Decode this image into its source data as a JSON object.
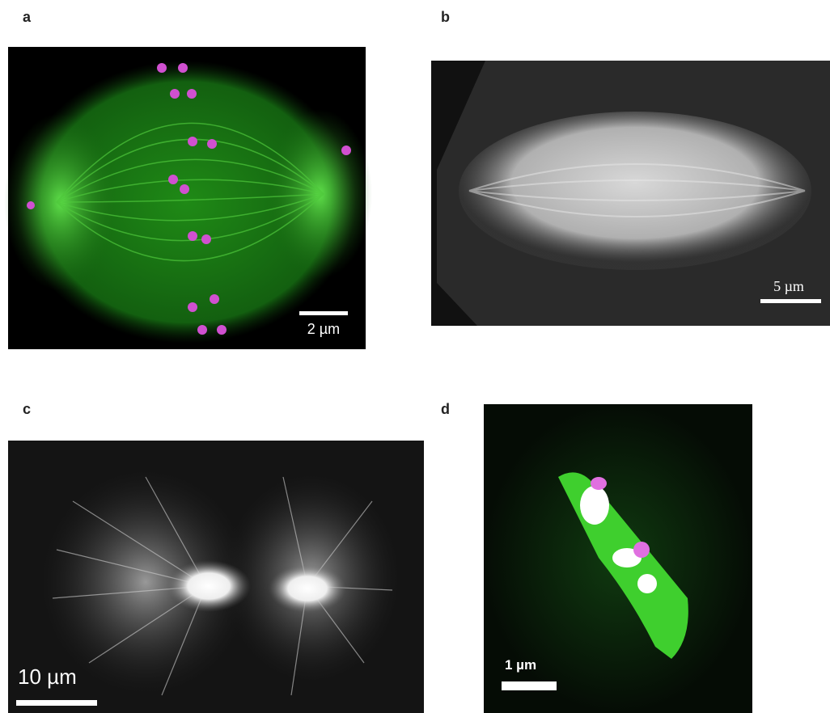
{
  "panels": [
    {
      "label": "a",
      "scale_bar": "2 µm"
    },
    {
      "label": "b",
      "scale_bar": "5 µm"
    },
    {
      "label": "c",
      "scale_bar": "10 µm"
    },
    {
      "label": "d",
      "scale_bar": "1 µm"
    }
  ]
}
